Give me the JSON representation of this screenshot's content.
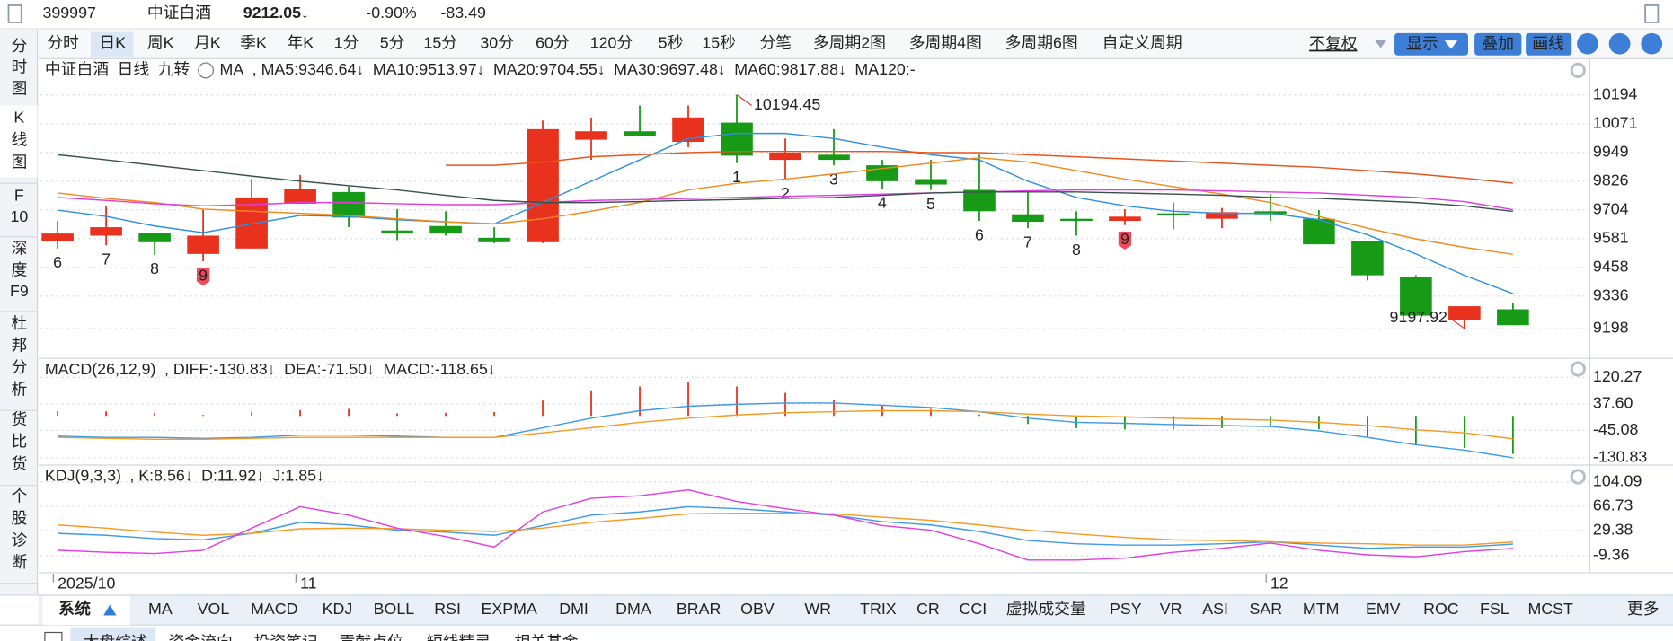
{
  "header": {
    "code": "399997",
    "name": "中证白酒",
    "price": "9212.05↓",
    "change_pct": "-0.90%",
    "change": "-83.49"
  },
  "left_tabs": [
    {
      "lines": [
        "分",
        "时",
        "图"
      ]
    },
    {
      "lines": [
        "K",
        "线",
        "图"
      ],
      "selected": true
    },
    {
      "lines": [
        "F",
        "10"
      ]
    },
    {
      "lines": [
        "深",
        "度",
        "F9"
      ]
    },
    {
      "lines": [
        "杜",
        "邦",
        "分",
        "析"
      ]
    },
    {
      "lines": [
        "货",
        "比",
        "货"
      ]
    },
    {
      "lines": [
        "个",
        "股",
        "诊",
        "断"
      ]
    }
  ],
  "period_tabs": [
    {
      "label": "分时"
    },
    {
      "label": "日K",
      "selected": true
    },
    {
      "label": "周K"
    },
    {
      "label": "月K"
    },
    {
      "label": "季K"
    },
    {
      "label": "年K"
    },
    {
      "label": "1分"
    },
    {
      "label": "5分"
    },
    {
      "label": "15分"
    },
    {
      "label": "30分"
    },
    {
      "label": "60分"
    },
    {
      "label": "120分"
    },
    {
      "label": "5秒"
    },
    {
      "label": "15秒"
    },
    {
      "label": "分笔"
    },
    {
      "label": "多周期2图"
    },
    {
      "label": "多周期4图"
    },
    {
      "label": "多周期6图"
    },
    {
      "label": "自定义周期"
    }
  ],
  "toolbar": {
    "adjust": "不复权",
    "display": "显示",
    "overlay": "叠加",
    "draw": "画线"
  },
  "chart_data": [
    {
      "type": "candlestick",
      "title": "中证白酒",
      "period": "日线",
      "indicator": "九转",
      "overlay_label": "MA",
      "categories": [
        "2025/10",
        null,
        null,
        null,
        null,
        "11",
        null,
        null,
        null,
        null,
        null,
        null,
        null,
        null,
        null,
        null,
        null,
        null,
        null,
        null,
        null,
        null,
        null,
        null,
        null,
        "12",
        null,
        null,
        null,
        null,
        null
      ],
      "open": [
        9571,
        9594,
        9607,
        9516,
        9539,
        9730,
        9780,
        9616,
        9635,
        9585,
        9566,
        10003,
        10039,
        9994,
        10076,
        9917,
        9939,
        9894,
        9835,
        9789,
        9685,
        9666,
        9657,
        9689,
        9666,
        9698,
        9666,
        9571,
        9416,
        9234,
        9280
      ],
      "high": [
        9657,
        9721,
        9607,
        9703,
        9835,
        9853,
        9803,
        9707,
        9698,
        9630,
        10085,
        10098,
        10149,
        10149,
        10194.45,
        10008,
        10048,
        9917,
        9917,
        9939,
        9780,
        9698,
        9707,
        9735,
        9712,
        9771,
        9703,
        9571,
        9425,
        9293,
        9307
      ],
      "low": [
        9539,
        9553,
        9512,
        9485,
        9539,
        9730,
        9630,
        9575,
        9594,
        9562,
        9562,
        9917,
        10017,
        9971,
        9903,
        9835,
        9894,
        9794,
        9789,
        9657,
        9626,
        9594,
        9639,
        9621,
        9626,
        9657,
        9557,
        9403,
        9253,
        9197.92,
        9212.05
      ],
      "close": [
        9603,
        9630,
        9566,
        9594,
        9757,
        9794,
        9671,
        9603,
        9603,
        9566,
        10048,
        10039,
        10017,
        10098,
        9935,
        9948,
        9917,
        9826,
        9812,
        9698,
        9653,
        9657,
        9675,
        9680,
        9694,
        9685,
        9557,
        9425,
        9253,
        9293,
        9212.05
      ],
      "up_color": "#e8321e",
      "down_color": "#179a16",
      "nine_turn": [
        6,
        7,
        8,
        9,
        null,
        null,
        null,
        null,
        null,
        null,
        null,
        null,
        null,
        null,
        1,
        2,
        3,
        4,
        5,
        6,
        7,
        8,
        9,
        null,
        null,
        null,
        null,
        null,
        null,
        null,
        null
      ],
      "nine_turn_color": "#e020e0",
      "high_label": "10194.45",
      "low_label": "9197.92",
      "series": [
        {
          "name": ", MA5:9346.64↓",
          "color": "#2e8fe0",
          "values": [
            9703,
            9676,
            9635,
            9607,
            9644,
            9680,
            9676,
            9662,
            9653,
            9644,
            9735,
            9826,
            9917,
            10008,
            10030,
            10030,
            10008,
            9971,
            9939,
            9917,
            9826,
            9757,
            9721,
            9698,
            9689,
            9689,
            9662,
            9598,
            9516,
            9425,
            9346.64
          ]
        },
        {
          "name": "MA10:9513.97↓",
          "color": "#f08a1c",
          "values": [
            9776,
            9753,
            9735,
            9707,
            9698,
            9689,
            9680,
            9666,
            9653,
            9644,
            9666,
            9698,
            9735,
            9789,
            9817,
            9835,
            9857,
            9880,
            9903,
            9926,
            9908,
            9871,
            9835,
            9803,
            9771,
            9735,
            9676,
            9626,
            9580,
            9544,
            9513.97
          ]
        },
        {
          "name": "MA20:9704.55↓",
          "color": "#e13be1",
          "values": [
            9757,
            9744,
            9730,
            9721,
            9726,
            9735,
            9735,
            9730,
            9726,
            9726,
            9735,
            9744,
            9748,
            9753,
            9757,
            9762,
            9766,
            9771,
            9776,
            9780,
            9785,
            9789,
            9789,
            9789,
            9785,
            9780,
            9776,
            9766,
            9757,
            9739,
            9704.55
          ]
        },
        {
          "name": "MA30:9697.48↓",
          "color": "#35524a",
          "values": [
            9939,
            9917,
            9894,
            9871,
            9848,
            9826,
            9807,
            9789,
            9766,
            9744,
            9735,
            9735,
            9739,
            9744,
            9748,
            9753,
            9757,
            9766,
            9776,
            9780,
            9780,
            9780,
            9776,
            9771,
            9766,
            9757,
            9753,
            9744,
            9735,
            9721,
            9697.48
          ]
        },
        {
          "name": "MA60:9817.88↓",
          "color": "#e8541c",
          "values": [
            null,
            null,
            null,
            null,
            null,
            null,
            null,
            null,
            9894,
            9894,
            9907,
            9930,
            9939,
            9948,
            9953,
            9953,
            9953,
            9953,
            9948,
            9948,
            9939,
            9930,
            9921,
            9912,
            9903,
            9894,
            9885,
            9871,
            9857,
            9839,
            9817.88
          ]
        }
      ],
      "extra_legend": "MA120:-",
      "extra_legend_color": "#8040c0",
      "ylim": [
        9098,
        10244
      ],
      "yticks": [
        10194,
        10071,
        9949,
        9826,
        9704,
        9581,
        9458,
        9336,
        9198
      ],
      "grid": true
    },
    {
      "type": "macd",
      "title": "MACD(26,12,9)",
      "histogram": {
        "name": "MACD:-118.65↓",
        "color": "#e13be1",
        "values": [
          15,
          14,
          10,
          3,
          12,
          18,
          22,
          8,
          10,
          12,
          48,
          80,
          92,
          105,
          92,
          72,
          50,
          33,
          22,
          4,
          -25,
          -38,
          -42,
          -42,
          -38,
          -33,
          -42,
          -65,
          -90,
          -100,
          -118.65
        ]
      },
      "up_color": "#e8321e",
      "down_color": "#179a16",
      "series": [
        {
          "name": ", DIFF:-130.83↓",
          "color": "#3e9ae8",
          "values": [
            -63,
            -67,
            -67,
            -70,
            -67,
            -60,
            -60,
            -63,
            -67,
            -67,
            -37,
            -7,
            16,
            30,
            36,
            40,
            40,
            33,
            26,
            13,
            -7,
            -20,
            -23,
            -27,
            -30,
            -33,
            -47,
            -67,
            -90,
            -107,
            -130.83
          ]
        },
        {
          "name": "DEA:-71.50↓",
          "color": "#f59a23",
          "values": [
            -67,
            -70,
            -73,
            -73,
            -70,
            -67,
            -67,
            -67,
            -67,
            -67,
            -53,
            -37,
            -20,
            -7,
            3,
            10,
            13,
            16,
            16,
            13,
            6,
            0,
            -3,
            -7,
            -10,
            -13,
            -20,
            -30,
            -43,
            -53,
            -71.5
          ]
        }
      ],
      "ylim": [
        -140,
        163
      ],
      "yticks": [
        120.27,
        {
          "value": 37.6,
          "label": "37.60"
        },
        -45.08,
        -130.83
      ],
      "grid": true
    },
    {
      "type": "line",
      "title": "KDJ(9,3,3)",
      "series": [
        {
          "name": ", K:8.56↓",
          "color": "#3e9ae8",
          "values": [
            25,
            22,
            17,
            15,
            25,
            42,
            38,
            30,
            27,
            22,
            37,
            53,
            58,
            66,
            63,
            58,
            53,
            43,
            38,
            28,
            14,
            9,
            7,
            7,
            9,
            12,
            7,
            2,
            4,
            4,
            8.56
          ]
        },
        {
          "name": "D:11.92↓",
          "color": "#f59a23",
          "values": [
            38,
            33,
            27,
            22,
            25,
            32,
            33,
            32,
            30,
            28,
            33,
            42,
            48,
            55,
            56,
            56,
            55,
            50,
            45,
            38,
            30,
            24,
            19,
            15,
            14,
            12,
            10,
            9,
            7,
            7,
            11.92
          ]
        },
        {
          "name": "J:1.85↓",
          "color": "#e040e0",
          "values": [
            -1,
            -4,
            -6,
            -1,
            33,
            66,
            53,
            33,
            20,
            4,
            58,
            79,
            83,
            92,
            74,
            63,
            53,
            37,
            30,
            9,
            -16,
            -16,
            -13,
            -4,
            2,
            10,
            -1,
            -8,
            -11,
            -3,
            1.85
          ]
        }
      ],
      "ylim": [
        -29,
        122
      ],
      "yticks": [
        104.09,
        66.73,
        29.38,
        -9.36
      ],
      "grid": true
    }
  ],
  "indicator_tabs": [
    {
      "label": "系统",
      "selected": true
    },
    {
      "label": "MA"
    },
    {
      "label": "VOL"
    },
    {
      "label": "MACD"
    },
    {
      "label": "KDJ"
    },
    {
      "label": "BOLL"
    },
    {
      "label": "RSI"
    },
    {
      "label": "EXPMA"
    },
    {
      "label": "DMI"
    },
    {
      "label": "DMA"
    },
    {
      "label": "BRAR"
    },
    {
      "label": "OBV"
    },
    {
      "label": "WR"
    },
    {
      "label": "TRIX"
    },
    {
      "label": "CR"
    },
    {
      "label": "CCI"
    },
    {
      "label": "虚拟成交量"
    },
    {
      "label": "PSY"
    },
    {
      "label": "VR"
    },
    {
      "label": "ASI"
    },
    {
      "label": "SAR"
    },
    {
      "label": "MTM"
    },
    {
      "label": "EMV"
    },
    {
      "label": "ROC"
    },
    {
      "label": "FSL"
    },
    {
      "label": "MCST"
    }
  ],
  "more": "更多",
  "panel_tabs": [
    {
      "label": "大盘综述",
      "selected": true
    },
    {
      "label": "资金流向"
    },
    {
      "label": "投资笔记"
    },
    {
      "label": "贡献点位"
    },
    {
      "label": "短线精灵"
    },
    {
      "label": "相关基金"
    }
  ]
}
